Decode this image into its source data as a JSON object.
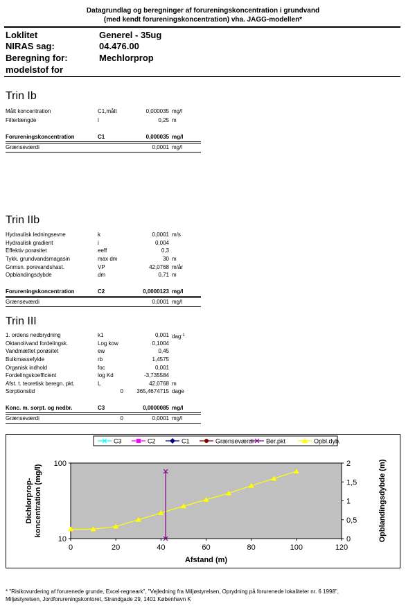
{
  "header": {
    "line1": "Datagrundlag og beregninger af forureningskoncentration i grundvand",
    "line2": "(med kendt forureningskoncentration) vha. JAGG-modellen*"
  },
  "meta": [
    {
      "label": "Loklitet",
      "value": "Generel - 35ug"
    },
    {
      "label": "NIRAS sag:",
      "value": "04.476.00"
    },
    {
      "label": "Beregning for:",
      "value": "Mechlorprop"
    },
    {
      "label": "modelstof for",
      "value": ""
    }
  ],
  "trin1": {
    "title": "Trin Ib",
    "rows": [
      {
        "label": "Målt koncentration",
        "sym": "C1,målt",
        "val": "0,000035",
        "unit": "mg/l"
      },
      {
        "label": "Filterlængde",
        "sym": "l",
        "val": "0,25",
        "unit": "m"
      }
    ],
    "result": {
      "label": "Forureningskoncentration",
      "sym": "C1",
      "val": "0,000035",
      "unit": "mg/l"
    },
    "limit": {
      "label": "Grænseværdi",
      "val": "0,0001",
      "unit": "mg/l"
    }
  },
  "trin2": {
    "title": "Trin IIb",
    "rows": [
      {
        "label": "Hydraulisk ledningsevne",
        "sym": "k",
        "val": "0,0001",
        "unit": "m/s"
      },
      {
        "label": "Hydraulisk gradient",
        "sym": "i",
        "val": "0,004",
        "unit": ""
      },
      {
        "label": "Effektiv porøsitet",
        "sym": "eeff",
        "val": "0,3",
        "unit": ""
      },
      {
        "label": "Tykk. grundvandsmagasin",
        "sym": "max dm",
        "val": "30",
        "unit": "m"
      },
      {
        "label": "Gnmsn. porevandshast.",
        "sym": "VP",
        "val": "42,0768",
        "unit": "m/år"
      },
      {
        "label": "Opblandingsdybde",
        "sym": "dm",
        "val": "0,71",
        "unit": "m"
      }
    ],
    "result": {
      "label": "Forureningskoncentration",
      "sym": "C2",
      "val": "0,0000123",
      "unit": "mg/l"
    },
    "limit": {
      "label": "Grænseværdi",
      "val": "0,0001",
      "unit": "mg/l"
    }
  },
  "trin3": {
    "title": "Trin III",
    "rows": [
      {
        "label": "1. ordens nedbrydning",
        "sym": "k1",
        "pre": "",
        "val": "0,001",
        "unit": "dag",
        "sup": "-1"
      },
      {
        "label": "Oktanol/vand fordelingsk.",
        "sym": "Log kow",
        "pre": "",
        "val": "0,1004",
        "unit": ""
      },
      {
        "label": "Vandmættet porøsitet",
        "sym": "ew",
        "pre": "",
        "val": "0,45",
        "unit": ""
      },
      {
        "label": "Bulkmassefylde",
        "sym": "rb",
        "pre": "",
        "val": "1,4575",
        "unit": ""
      },
      {
        "label": "Organisk indhold",
        "sym": "foc",
        "pre": "",
        "val": "0,001",
        "unit": ""
      },
      {
        "label": "Fordelingskoefficient",
        "sym": "log Kd",
        "pre": "",
        "val": "-3,735584",
        "unit": ""
      },
      {
        "label": "Afst. t. teoretisk beregn. pkt.",
        "sym": "L",
        "pre": "",
        "val": "42,0768",
        "unit": "m"
      },
      {
        "label": "Sorptionstid",
        "sym": "",
        "pre": "0",
        "val": "365,4674715",
        "unit": "dage"
      }
    ],
    "result": {
      "label": "Konc. m. sorpt. og nedbr.",
      "sym": "C3",
      "val": "0,0000085",
      "unit": "mg/l"
    },
    "limit": {
      "label": "Grænseværdi",
      "pre": "0",
      "val": "0,0001",
      "unit": "mg/l"
    }
  },
  "chart_data": {
    "type": "line",
    "legend": [
      "C3",
      "C2",
      "C1",
      "Grænseværdi",
      "Ber.pkt",
      "Opbl.dyb."
    ],
    "legend_placement": "top",
    "xlabel": "Afstand (m)",
    "ylabel_left": "Dichlorprop-koncentration (mg/l)",
    "ylabel_right": "Opblandingsdybde (m)",
    "x_ticks": [
      "0",
      "20",
      "40",
      "60",
      "80",
      "100",
      "120"
    ],
    "y_left_ticks": [
      "10",
      "100"
    ],
    "y_right_ticks": [
      "0",
      "0,5",
      "1",
      "1,5",
      "2"
    ],
    "xlim": [
      0,
      120
    ],
    "ylim_left": [
      10,
      100
    ],
    "ylim_right": [
      0,
      2
    ],
    "series": [
      {
        "name": "Ber.pkt",
        "axis": "right",
        "x": [
          42.0768,
          42.0768
        ],
        "y": [
          0,
          1.78
        ]
      },
      {
        "name": "Opbl.dyb.",
        "axis": "right",
        "x": [
          0,
          10,
          20,
          30,
          40,
          50,
          60,
          70,
          80,
          90,
          100
        ],
        "y": [
          0.25,
          0.25,
          0.32,
          0.5,
          0.68,
          0.86,
          1.03,
          1.2,
          1.4,
          1.59,
          1.78
        ]
      }
    ],
    "colors": {
      "plot_bg": "#c0c0c0",
      "opbl": "#ffff00",
      "berpkt": "#800080",
      "c3": "#00ffff",
      "c2": "#ff00ff",
      "c1": "#000080",
      "graense": "#800000"
    }
  },
  "footnote": {
    "line1": "* \"Risikovurdering af forurenede grunde, Excel-regneark\", \"Vejledning fra Miljøstyrelsen, Oprydning på forurenede lokaliteter nr. 6 1998\",",
    "line2": "Miljøstyrelsen, Jordforureningskontoret, Strandgade 29, 1401 København K"
  }
}
